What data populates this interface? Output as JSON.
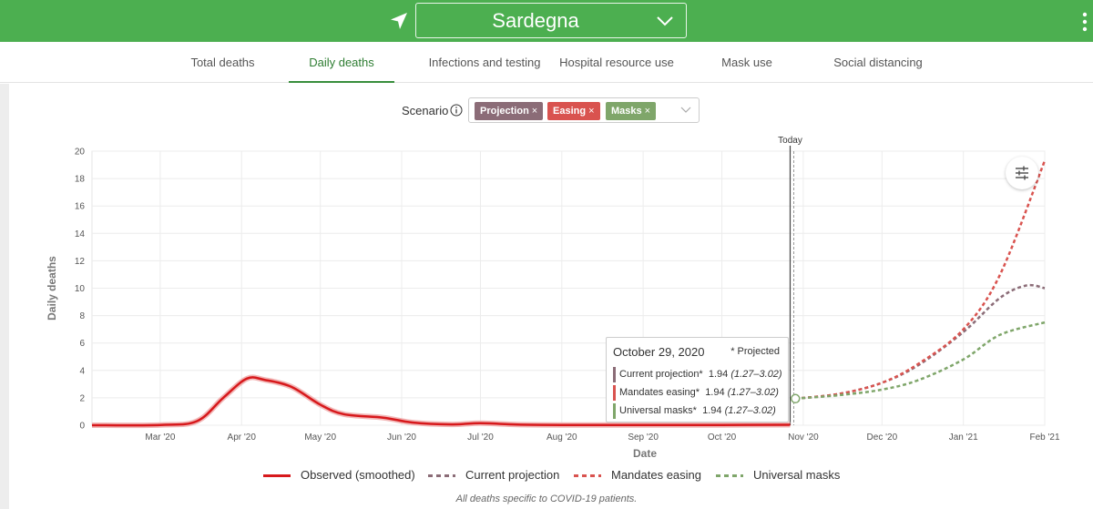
{
  "header": {
    "region": "Sardegna",
    "location_icon": "navigation-arrow-icon",
    "menu_icon": "kebab-menu-icon",
    "bg_color": "#4caf50"
  },
  "tabs": [
    {
      "label": "Total deaths",
      "active": false
    },
    {
      "label": "Daily deaths",
      "active": true
    },
    {
      "label": "Infections and testing",
      "active": false
    },
    {
      "label": "Hospital resource use",
      "active": false
    },
    {
      "label": "Mask use",
      "active": false
    },
    {
      "label": "Social distancing",
      "active": false
    }
  ],
  "scenario": {
    "label": "Scenario",
    "chips": [
      {
        "label": "Projection",
        "color": "#8b6c77"
      },
      {
        "label": "Easing",
        "color": "#d9534f"
      },
      {
        "label": "Masks",
        "color": "#7fa66a"
      }
    ]
  },
  "tooltip": {
    "date": "October 29, 2020",
    "projected_note": "* Projected",
    "rows": [
      {
        "label": "Current projection*",
        "value": "1.94",
        "range": "(1.27–3.02)",
        "color": "#8b6c77"
      },
      {
        "label": "Mandates easing*",
        "value": "1.94",
        "range": "(1.27–3.02)",
        "color": "#d9534f"
      },
      {
        "label": "Universal masks*",
        "value": "1.94",
        "range": "(1.27–3.02)",
        "color": "#7fa66a"
      }
    ]
  },
  "chart_data": {
    "type": "line",
    "xlabel": "Date",
    "ylabel": "Daily deaths",
    "ylim": [
      0,
      20
    ],
    "yticks": [
      0,
      2,
      4,
      6,
      8,
      10,
      12,
      14,
      16,
      18,
      20
    ],
    "xlim": [
      "2020-02-04",
      "2021-02-01"
    ],
    "xticks": [
      {
        "date": "2020-03-01",
        "label": "Mar '20"
      },
      {
        "date": "2020-04-01",
        "label": "Apr '20"
      },
      {
        "date": "2020-05-01",
        "label": "May '20"
      },
      {
        "date": "2020-06-01",
        "label": "Jun '20"
      },
      {
        "date": "2020-07-01",
        "label": "Jul '20"
      },
      {
        "date": "2020-08-01",
        "label": "Aug '20"
      },
      {
        "date": "2020-09-01",
        "label": "Sep '20"
      },
      {
        "date": "2020-10-01",
        "label": "Oct '20"
      },
      {
        "date": "2020-11-01",
        "label": "Nov '20"
      },
      {
        "date": "2020-12-01",
        "label": "Dec '20"
      },
      {
        "date": "2021-01-01",
        "label": "Jan '21"
      },
      {
        "date": "2021-02-01",
        "label": "Feb '21"
      }
    ],
    "today": {
      "date": "2020-10-27",
      "label": "Today"
    },
    "grid": true,
    "legend_position": "bottom",
    "series": [
      {
        "name": "Observed (smoothed)",
        "style": "solid",
        "color": "#d7191c",
        "points": [
          [
            "2020-02-04",
            0
          ],
          [
            "2020-03-01",
            0.02
          ],
          [
            "2020-03-15",
            0.3
          ],
          [
            "2020-03-25",
            2.0
          ],
          [
            "2020-04-03",
            3.4
          ],
          [
            "2020-04-10",
            3.3
          ],
          [
            "2020-04-20",
            2.8
          ],
          [
            "2020-05-01",
            1.5
          ],
          [
            "2020-05-10",
            0.8
          ],
          [
            "2020-05-25",
            0.55
          ],
          [
            "2020-06-05",
            0.2
          ],
          [
            "2020-06-20",
            0.06
          ],
          [
            "2020-07-01",
            0.15
          ],
          [
            "2020-07-15",
            0.05
          ],
          [
            "2020-08-01",
            0.02
          ],
          [
            "2020-09-01",
            0.02
          ],
          [
            "2020-10-01",
            0.02
          ],
          [
            "2020-10-27",
            0.03
          ]
        ]
      },
      {
        "name": "Current projection",
        "style": "dashed",
        "color": "#8b6c77",
        "points": [
          [
            "2020-10-29",
            1.94
          ],
          [
            "2020-11-15",
            2.3
          ],
          [
            "2020-12-01",
            3.1
          ],
          [
            "2020-12-15",
            4.4
          ],
          [
            "2021-01-01",
            6.8
          ],
          [
            "2021-01-15",
            9.3
          ],
          [
            "2021-01-25",
            10.2
          ],
          [
            "2021-02-01",
            10.0
          ]
        ]
      },
      {
        "name": "Mandates easing",
        "style": "dashed",
        "color": "#d9534f",
        "points": [
          [
            "2020-10-29",
            1.94
          ],
          [
            "2020-11-15",
            2.3
          ],
          [
            "2020-12-01",
            3.1
          ],
          [
            "2020-12-15",
            4.5
          ],
          [
            "2021-01-01",
            7.0
          ],
          [
            "2021-01-15",
            11.0
          ],
          [
            "2021-02-01",
            19.3
          ]
        ]
      },
      {
        "name": "Universal masks",
        "style": "dashed",
        "color": "#7fa66a",
        "points": [
          [
            "2020-10-29",
            1.94
          ],
          [
            "2020-11-15",
            2.2
          ],
          [
            "2020-12-01",
            2.6
          ],
          [
            "2020-12-15",
            3.3
          ],
          [
            "2021-01-01",
            4.8
          ],
          [
            "2021-01-15",
            6.6
          ],
          [
            "2021-02-01",
            7.5
          ]
        ]
      }
    ],
    "hover_point": [
      "2020-10-29",
      1.94
    ]
  },
  "footnote": "All deaths specific to COVID-19 patients.",
  "settings_icon": "chart-settings-sliders-icon"
}
